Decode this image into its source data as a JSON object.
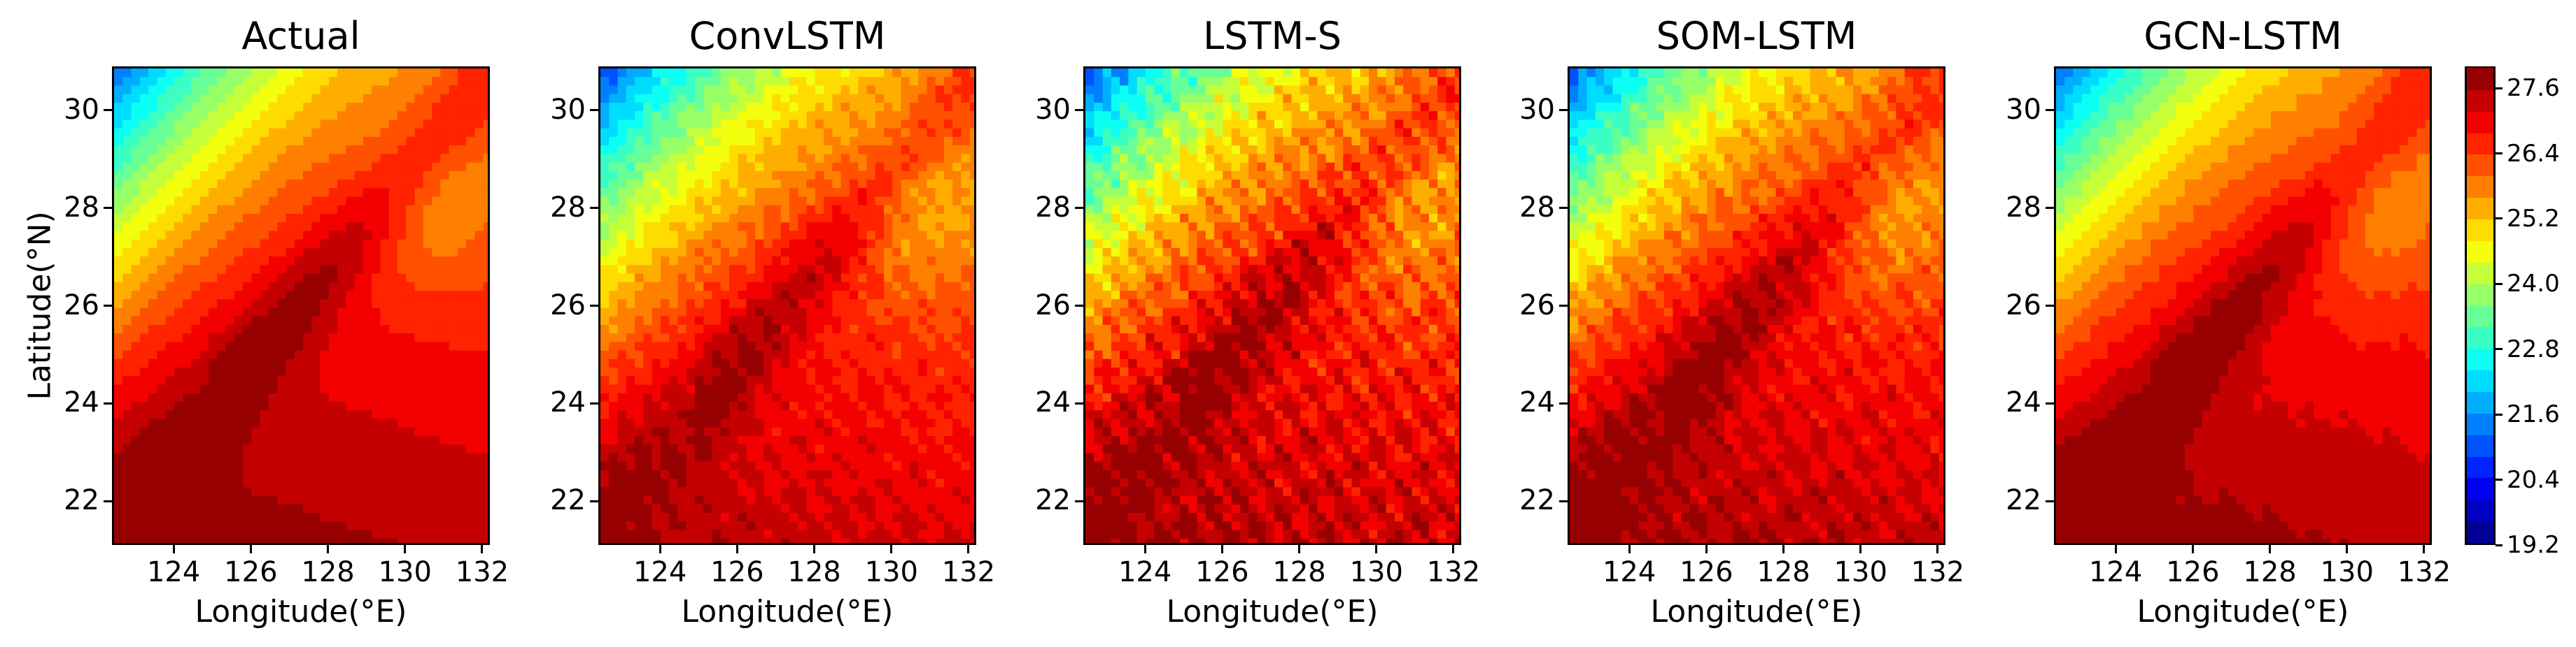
{
  "chart_data": {
    "type": "heatmap",
    "panels": [
      {
        "title": "Actual",
        "xlabel": "Longitude(°E)",
        "ylabel": "Latitude(°N)"
      },
      {
        "title": "ConvLSTM",
        "xlabel": "Longitude(°E)",
        "ylabel": ""
      },
      {
        "title": "LSTM-S",
        "xlabel": "Longitude(°E)",
        "ylabel": ""
      },
      {
        "title": "SOM-LSTM",
        "xlabel": "Longitude(°E)",
        "ylabel": ""
      },
      {
        "title": "GCN-LSTM",
        "xlabel": "Longitude(°E)",
        "ylabel": ""
      }
    ],
    "x_ticks": [
      "124",
      "126",
      "128",
      "130",
      "132"
    ],
    "y_ticks": [
      "22",
      "24",
      "26",
      "28",
      "30"
    ],
    "xlim": [
      122.4,
      132.2
    ],
    "ylim": [
      21.1,
      30.9
    ],
    "colorbar": {
      "ticks": [
        "19.2",
        "20.4",
        "21.6",
        "22.8",
        "24.0",
        "25.2",
        "26.4",
        "27.6"
      ],
      "range": [
        19.2,
        28.0
      ],
      "levels": [
        19.2,
        19.6,
        20.0,
        20.4,
        20.8,
        21.2,
        21.6,
        22.0,
        22.4,
        22.8,
        23.2,
        23.6,
        24.0,
        24.4,
        24.8,
        25.2,
        25.6,
        26.0,
        26.4,
        26.8,
        27.2,
        27.6,
        28.0
      ],
      "colormap": "jet"
    }
  }
}
